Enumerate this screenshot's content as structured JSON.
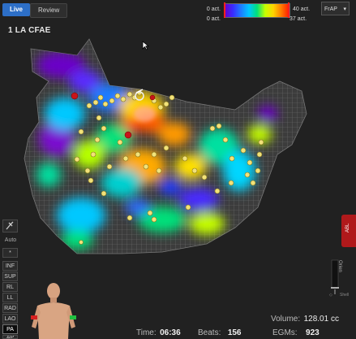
{
  "tabs": [
    {
      "label": "Live"
    },
    {
      "label": "Review"
    }
  ],
  "map_title": "1 LA CFAE",
  "color_scale": {
    "left_top": "0 act.",
    "left_bottom": "0 act.",
    "right_top": "40 act.",
    "right_bottom": "37 act.",
    "colors": [
      "#6a00c8",
      "#1e7bff",
      "#00c6ff",
      "#00e07a",
      "#c6ff00",
      "#ffd400",
      "#ff7a00",
      "#ff1400"
    ]
  },
  "view_select": {
    "value": "FrAP"
  },
  "left_toolbar": {
    "auto_label": "Auto",
    "star": "*",
    "views": [
      "INF",
      "SUP",
      "RL",
      "LL",
      "RAD",
      "LAO",
      "PA"
    ],
    "active_view": "PA",
    "last": "AP"
  },
  "abl_tab": {
    "label": "ABL"
  },
  "orient": {
    "label": "Orien",
    "sub": "Shell"
  },
  "stats": {
    "volume_label": "Volume:",
    "volume_value": "128.01 cc",
    "time_label": "Time:",
    "time_value": "06:36",
    "beats_label": "Beats:",
    "beats_value": "156",
    "egms_label": "EGMs:",
    "egms_value": "923"
  },
  "icons": {
    "tool": "hand-tool-icon",
    "torso": "torso-orientation-icon",
    "cursor": "mouse-cursor-icon"
  }
}
